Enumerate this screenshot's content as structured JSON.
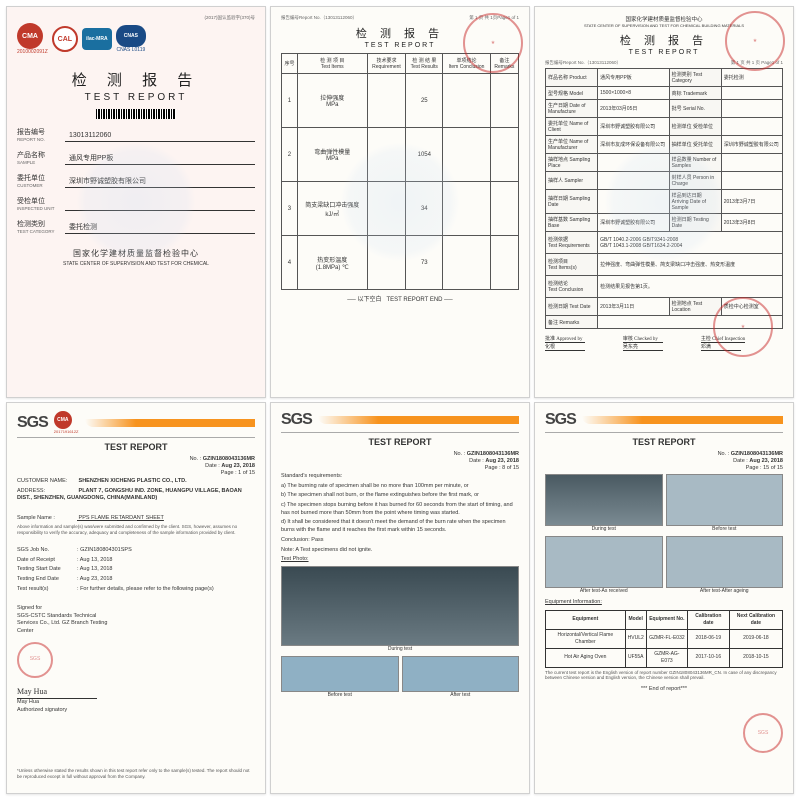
{
  "doc1": {
    "topmeta": "(2017)国认监验字(370)号",
    "logos": {
      "cma": "CMA",
      "cma_num": "2010002091Z",
      "cal": "CAL",
      "ilac": "ilac-MRA",
      "cnas": "CNAS",
      "cnas_num": "CNAS L0119"
    },
    "title_cn": "检 测 报 告",
    "title_en": "TEST  REPORT",
    "report_no_label_cn": "报告编号",
    "report_no_label_en": "REPORT NO.",
    "report_no": "13013112060",
    "product_label_cn": "产品名称",
    "product_label_en": "SAMPLE",
    "product": "通风专用PP板",
    "client_label_cn": "委托单位",
    "client_label_en": "CUSTOMER",
    "client": "深圳市野诚塑胶有限公司",
    "inspected_label_cn": "受检单位",
    "inspected_label_en": "INSPECTED UNIT",
    "inspected": "",
    "category_label_cn": "检测类别",
    "category_label_en": "TEST CATEGORY",
    "category": "委托检测",
    "org_cn": "国家化学建材质量监督检验中心",
    "org_en": "STATE CENTER OF SUPERVISION AND TEST FOR CHEMICAL"
  },
  "doc2": {
    "topleft": "报告编号Report No.（13013112060）",
    "topright": "第 1 页 共 1页Page1 of 1",
    "title_cn": "检 测 报 告",
    "title_en": "TEST REPORT",
    "headers": [
      "序号",
      "检 测 项 目\nTest Items",
      "技术要求\nRequirement",
      "检 测 结 果\nTest Results",
      "单项结论\nItem Conclusion",
      "备注\nRemarks"
    ],
    "rows": [
      {
        "n": "1",
        "item": "拉伸强度\nMPa",
        "req": "",
        "res": "25",
        "conc": "",
        "rem": ""
      },
      {
        "n": "2",
        "item": "弯曲弹性模量\nMPa",
        "req": "",
        "res": "1054",
        "conc": "",
        "rem": ""
      },
      {
        "n": "3",
        "item": "简支梁缺口冲击强度\nkJ/㎡",
        "req": "",
        "res": "34",
        "conc": "",
        "rem": ""
      },
      {
        "n": "4",
        "item": "热变形温度\n(1.8MPa)  ℃",
        "req": "",
        "res": "73",
        "conc": "",
        "rem": ""
      }
    ],
    "end_cn": "以下空白",
    "end_en": "TEST REPORT END"
  },
  "doc3": {
    "org_cn": "国家化学建材质量监督检验中心",
    "org_en": "STATE CENTER OF SUPERVISION AND TEST FOR CHEMICAL BUILDING MATERIALS",
    "title_cn": "检  测  报  告",
    "title_en": "TEST   REPORT",
    "topmeta_l": "报告编号Report No.（13013112060）",
    "topmeta_r": "第 1 页 共 1 页 Page1 of 1",
    "rows": [
      [
        "样品名称 Product",
        "通风专用PP板",
        "检测类别 Test Category",
        "委托检测"
      ],
      [
        "型号规格 Model",
        "1500×1000×8",
        "商标 Trademark",
        ""
      ],
      [
        "生产日期 Date of Manufacture",
        "2013年03月05日",
        "批号 Serial No.",
        ""
      ],
      [
        "委托单位 Name of Client",
        "深圳市野诚塑胶有限公司",
        "检测单位 受检单位",
        ""
      ],
      [
        "生产单位 Name of Manufacturer",
        "深圳市友成环保设备有限公司",
        "抽样单位 受托单位",
        "深圳市野诚塑胶有限公司"
      ],
      [
        "抽样地点 Sampling Place",
        "",
        "样品数量 Number of Samples",
        ""
      ],
      [
        "抽样人 Sampler",
        "",
        "封样人员 Person in Charge",
        ""
      ],
      [
        "抽样日期 Sampling Date",
        "",
        "样品到达日期 Arriving Date of Sample",
        "2013年3月7日"
      ],
      [
        "抽样基数 Sampling Base",
        "深圳市野诚塑胶有限公司",
        "检测日期 Testing Date",
        "2013年3月8日"
      ]
    ],
    "req_label": "检测依据\nTest Requirements",
    "req_val": "GB/T 1040.2-2006  GB/T9341-2008\nGB/T 1043.1-2008  GB/T1634.2-2004",
    "instr_label": "检测项目\nTest Items(s)",
    "instr_val": "拉伸强度、弯曲弹性模量、简支梁缺口冲击强度、热变形温度",
    "concl_label": "检测结论\nTest Conclusion",
    "concl_val": "检测结果见报告第1页。",
    "date_label": "检测日期 Test Date",
    "date_val": "2013年3月11日",
    "loc_label": "检测地点 Test Location",
    "loc_val": "质检中心检测室",
    "remark_label": "备注 Remarks",
    "remark_val": "",
    "sigs": [
      "批准 Approved by",
      "审核 Checked by",
      "主检 Chief Inspection"
    ],
    "signames": [
      "化根",
      "吴东亮",
      "邓满"
    ]
  },
  "sgs_common": {
    "logo": "SGS",
    "cma": "CMA",
    "cma_num": "2017191612Z",
    "title": "TEST REPORT",
    "no_lbl": "No.    :",
    "no": "GZIN1808043136MR",
    "date_lbl": "Date  :",
    "date": "Aug 23, 2018"
  },
  "doc4": {
    "page": "Page  :  1 of 15",
    "cust_lbl": "CUSTOMER NAME:",
    "cust": "SHENZHEN XICHENG PLASTIC CO., LTD.",
    "addr_lbl": "ADDRESS:",
    "addr": "PLANT 7, GONGSHU IND. ZONE, HUANGPU VILLAGE, BAOAN DIST., SHENZHEN, GUANGDONG, CHINA(MAINLAND)",
    "sample_lbl": "Sample Name            :",
    "sample": "PPS FLAME RETARDANT SHEET",
    "disclaim": "Above information and sample(s) was/were submitted and confirmed by the client. SGS, however, assumes no responsibility to verify the accuracy, adequacy and completeness of the sample information provided by client.",
    "job_lbl": "SGS Job No.",
    "job": "GZIN180804301SPS",
    "recv_lbl": "Date of Receipt",
    "recv": "Aug 13, 2018",
    "start_lbl": "Testing Start Date",
    "start": "Aug 13, 2018",
    "end_lbl": "Testing End Date",
    "end": "Aug 23, 2018",
    "res_lbl": "Test result(s)",
    "res": "For further details, please refer to the following page(s)",
    "signed": "Signed for\nSGS-CSTC Standards Technical\nServices Co., Ltd. GZ Branch Testing\nCenter",
    "signame": "May Hua",
    "sigrole": "Authorized signatory",
    "foot": "*Unless otherwise stated the results shown in this test report refer only to the sample(s) tested. The report should not be reproduced except in full without approval from the Company."
  },
  "doc5": {
    "page": "Page  :  8 of 15",
    "std_head": "Standard's requirements:",
    "std": [
      "a)  The burning rate of specimen shall be no more than 100mm per minute, or",
      "b)  The specimen shall not burn, or the flame extinguishes before the first mark, or",
      "c)  The specimen stops burning before it has burned for 60 seconds from the start of timing, and has not burned more than 50mm from the point where timing was started.",
      "d)  It shall be considered that it doesn't meet the demand of the burn rate when the specimen burns with the flame and it reaches the first mark within 15 seconds."
    ],
    "concl_lbl": "Conclusion:",
    "concl": "Pass",
    "note": "Note: A Test specimens did not ignite.",
    "photo_lbl": "Test Photo:",
    "cap_main": "During test",
    "cap_l": "Before test",
    "cap_r": "After test"
  },
  "doc6": {
    "page": "Page  :  15 of 15",
    "caps": [
      "During test",
      "Before test",
      "After test-As received",
      "After test-After ageing"
    ],
    "eq_head": "Equipment Information:",
    "eq_cols": [
      "Equipment",
      "Model",
      "Equipment No.",
      "Calibration date",
      "Next Calibration date"
    ],
    "eq_rows": [
      [
        "Horizontal/Vertical Flame Chamber",
        "HVUL2",
        "GZMR-FL-E032",
        "2018-06-19",
        "2019-06-18"
      ],
      [
        "Hot Air Aging Oven",
        "UF55A",
        "GZMR-AG-E073",
        "2017-10-16",
        "2018-10-15"
      ]
    ],
    "note": "The current test report is the English version of report number GZIN1808043136MR_CN. In case of any discrepancy between Chinese version and English version, the Chinese version shall prevail.",
    "end": "*** End of report***"
  },
  "colors": {
    "red": "#c0392b",
    "blue": "#1a6fa0",
    "darkblue": "#1a4a85",
    "orange": "#f7931e",
    "stamp": "rgba(200,40,40,0.5)",
    "page_bg": "#fdfcf8",
    "page_pink": "#fdf4f2",
    "watermark": "rgba(200,220,240,0.25)"
  }
}
